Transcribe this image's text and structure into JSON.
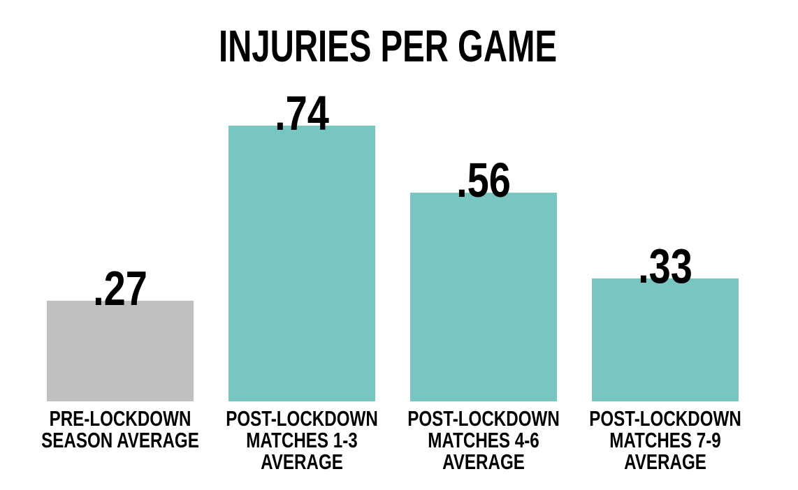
{
  "chart_data": {
    "type": "bar",
    "title": "INJURIES PER GAME",
    "categories": [
      "PRE-LOCKDOWN SEASON AVERAGE",
      "POST-LOCKDOWN MATCHES 1-3 AVERAGE",
      "POST-LOCKDOWN MATCHES 4-6 AVERAGE",
      "POST-LOCKDOWN MATCHES 7-9 AVERAGE"
    ],
    "values": [
      0.27,
      0.74,
      0.56,
      0.33
    ],
    "value_labels": [
      ".27",
      ".74",
      ".56",
      ".33"
    ],
    "colors": [
      "#c0c0c0",
      "#79c5c2",
      "#79c5c2",
      "#79c5c2"
    ]
  }
}
